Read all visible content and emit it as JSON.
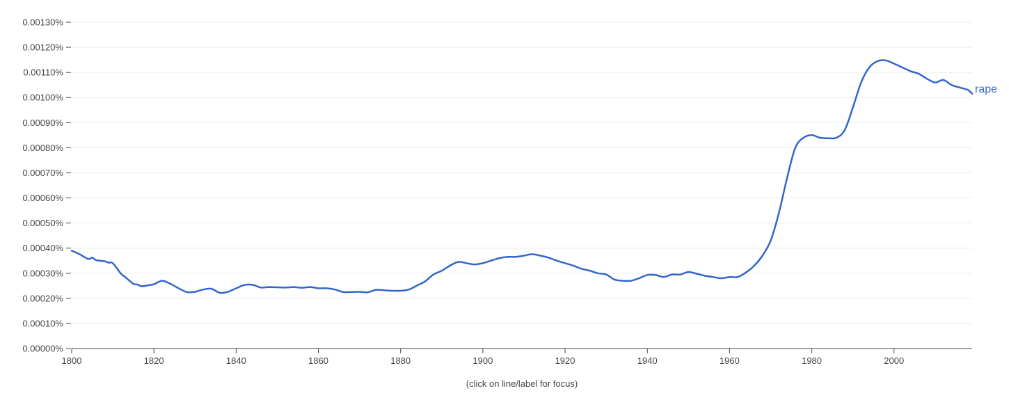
{
  "chart_data": {
    "type": "line",
    "title": "",
    "xlabel": "",
    "ylabel": "",
    "xlim": [
      1800,
      2019
    ],
    "ylim": [
      0,
      0.0013
    ],
    "grid": true,
    "line_color": "#3366cc",
    "x_ticks": [
      1800,
      1820,
      1840,
      1860,
      1880,
      1900,
      1920,
      1940,
      1960,
      1980,
      2000
    ],
    "y_ticks": [
      0,
      0.0001,
      0.0002,
      0.0003,
      0.0004,
      0.0005,
      0.0006,
      0.0007,
      0.0008,
      0.0009,
      0.001,
      0.0011,
      0.0012,
      0.0013
    ],
    "y_tick_labels": [
      "0.00000%",
      "0.00010%",
      "0.00020%",
      "0.00030%",
      "0.00040%",
      "0.00050%",
      "0.00060%",
      "0.00070%",
      "0.00080%",
      "0.00090%",
      "0.00100%",
      "0.00110%",
      "0.00120%",
      "0.00130%"
    ],
    "series": [
      {
        "name": "rape",
        "x": [
          1800,
          1802,
          1804,
          1805,
          1806,
          1808,
          1809,
          1810,
          1812,
          1813,
          1815,
          1816,
          1817,
          1819,
          1820,
          1822,
          1824,
          1826,
          1828,
          1830,
          1832,
          1834,
          1836,
          1838,
          1840,
          1842,
          1844,
          1846,
          1848,
          1850,
          1852,
          1854,
          1856,
          1858,
          1860,
          1862,
          1864,
          1866,
          1868,
          1870,
          1872,
          1874,
          1876,
          1878,
          1880,
          1882,
          1884,
          1886,
          1888,
          1890,
          1892,
          1894,
          1896,
          1898,
          1900,
          1902,
          1904,
          1906,
          1908,
          1910,
          1912,
          1914,
          1916,
          1918,
          1920,
          1922,
          1924,
          1926,
          1928,
          1930,
          1932,
          1934,
          1936,
          1938,
          1940,
          1942,
          1944,
          1946,
          1948,
          1950,
          1952,
          1954,
          1956,
          1958,
          1960,
          1962,
          1964,
          1966,
          1968,
          1970,
          1972,
          1974,
          1976,
          1978,
          1980,
          1982,
          1984,
          1986,
          1988,
          1990,
          1992,
          1994,
          1996,
          1998,
          2000,
          2002,
          2004,
          2006,
          2008,
          2010,
          2012,
          2014,
          2016,
          2018,
          2019
        ],
        "values": [
          0.00039,
          0.000375,
          0.000357,
          0.000362,
          0.000352,
          0.000348,
          0.000342,
          0.00034,
          0.000298,
          0.000285,
          0.000258,
          0.000255,
          0.000248,
          0.000253,
          0.000256,
          0.00027,
          0.000258,
          0.00024,
          0.000225,
          0.000226,
          0.000235,
          0.000238,
          0.000222,
          0.000226,
          0.00024,
          0.000253,
          0.000254,
          0.000243,
          0.000245,
          0.000244,
          0.000243,
          0.000245,
          0.000242,
          0.000245,
          0.00024,
          0.00024,
          0.000235,
          0.000225,
          0.000225,
          0.000226,
          0.000224,
          0.000234,
          0.000232,
          0.00023,
          0.00023,
          0.000235,
          0.000251,
          0.000268,
          0.000295,
          0.00031,
          0.00033,
          0.000345,
          0.00034,
          0.000335,
          0.00034,
          0.00035,
          0.00036,
          0.000365,
          0.000365,
          0.00037,
          0.000376,
          0.00037,
          0.000362,
          0.00035,
          0.00034,
          0.00033,
          0.000318,
          0.00031,
          0.0003,
          0.000295,
          0.000275,
          0.00027,
          0.00027,
          0.00028,
          0.000293,
          0.000293,
          0.000285,
          0.000295,
          0.000295,
          0.000305,
          0.000298,
          0.00029,
          0.000285,
          0.00028,
          0.000285,
          0.000285,
          0.000303,
          0.00033,
          0.00037,
          0.00043,
          0.00054,
          0.00068,
          0.0008,
          0.00084,
          0.00085,
          0.00084,
          0.000838,
          0.00084,
          0.00087,
          0.00096,
          0.00106,
          0.00112,
          0.001145,
          0.001148,
          0.001135,
          0.00112,
          0.001105,
          0.001095,
          0.001075,
          0.00106,
          0.00107,
          0.00105,
          0.00104,
          0.00103,
          0.001015
        ]
      }
    ]
  },
  "note": "(click on line/label for focus)"
}
